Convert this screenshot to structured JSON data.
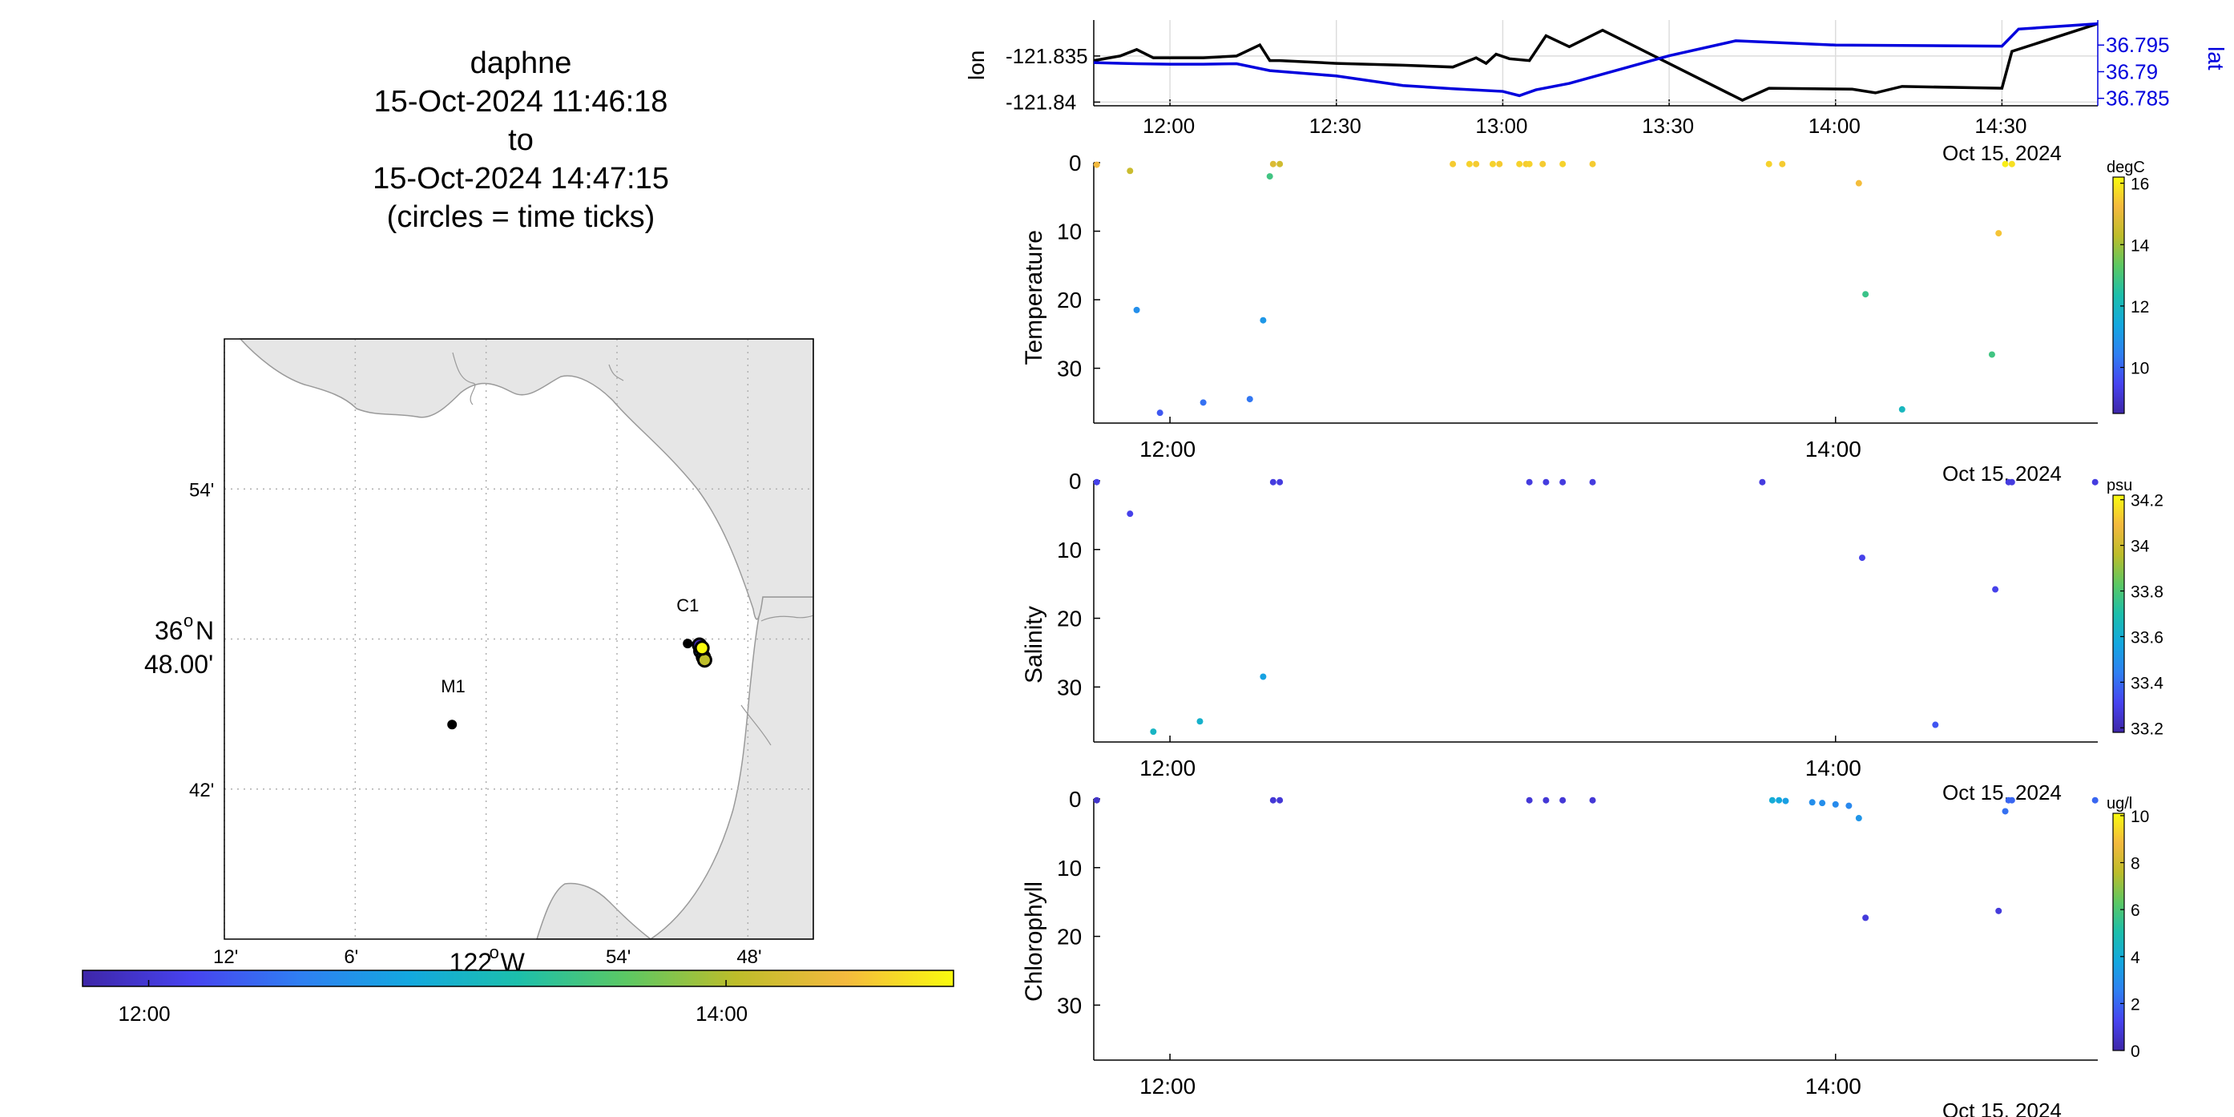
{
  "title": {
    "lines": [
      "daphne",
      "15-Oct-2024 11:46:18",
      "to",
      "15-Oct-2024 14:47:15",
      "(circles = time ticks)"
    ]
  },
  "colors": {
    "background": "#ffffff",
    "land": "#e6e6e6",
    "coast": "#9a9a9a",
    "grid": "#b0b0b0",
    "lon_line": "#000000",
    "lat_line": "#0000dd",
    "colormap": [
      "#3e26a8",
      "#4743f0",
      "#2f7ff2",
      "#13a8df",
      "#1cbfab",
      "#5cc863",
      "#bdbd2a",
      "#f4b93e",
      "#f9fb0e"
    ]
  },
  "chart_data": [
    {
      "name": "map",
      "type": "scatter",
      "x_ticks": [
        -122.2,
        -122.1,
        -122.0,
        -121.9,
        -121.8
      ],
      "x_tick_labels": [
        "12'",
        "6'",
        "122°W",
        "54'",
        "48'"
      ],
      "xlabel_major": "122",
      "xlabel_major_sup": "o",
      "xlabel_major_suffix": "W",
      "y_ticks": [
        36.7,
        36.8,
        36.9
      ],
      "y_tick_labels": [
        "42'",
        "48.00'",
        "54'"
      ],
      "ylabel_major": "36",
      "ylabel_major_sup": "o",
      "ylabel_major_suffix": "N",
      "xlim": [
        -122.2,
        -121.75
      ],
      "ylim": [
        36.6,
        37.0
      ],
      "stations": [
        {
          "label": "M1",
          "lon": -122.026,
          "lat": 36.743
        },
        {
          "label": "C1",
          "lon": -121.846,
          "lat": 36.797
        }
      ],
      "track": [
        [
          -121.837,
          36.796
        ],
        [
          -121.836,
          36.792
        ],
        [
          -121.834,
          36.788
        ],
        [
          -121.833,
          36.786
        ],
        [
          -121.835,
          36.794
        ]
      ],
      "time_colorbar": {
        "ticks": [
          "12:00",
          "14:00"
        ],
        "tick_times": [
          12.0,
          14.0
        ],
        "range": [
          11.771,
          14.788
        ]
      }
    },
    {
      "name": "position",
      "type": "line",
      "x_ticks": [
        "12:00",
        "12:30",
        "13:00",
        "13:30",
        "14:00",
        "14:30"
      ],
      "x_tick_values": [
        12.0,
        12.5,
        13.0,
        13.5,
        14.0,
        14.5
      ],
      "xlim": [
        11.771,
        14.788
      ],
      "date_label": "Oct 15, 2024",
      "ylabel_left": "lon",
      "ylabel_right": "lat",
      "left_ticks": [
        -121.835,
        -121.84
      ],
      "left_tick_labels": [
        "-121.835",
        "-121.84"
      ],
      "left_ylim": [
        -121.8404,
        -121.8311
      ],
      "right_ticks": [
        36.795,
        36.79,
        36.785
      ],
      "right_tick_labels": [
        "36.795",
        "36.79",
        "36.785"
      ],
      "right_ylim": [
        36.7836,
        36.7997
      ],
      "series": [
        {
          "key": "lon",
          "color": "#000000",
          "x": [
            11.771,
            11.85,
            11.9,
            11.95,
            12.0,
            12.1,
            12.2,
            12.27,
            12.3,
            12.33,
            12.5,
            12.7,
            12.85,
            12.92,
            12.95,
            12.98,
            13.02,
            13.08,
            13.13,
            13.2,
            13.3,
            13.72,
            13.8,
            14.05,
            14.12,
            14.2,
            14.5,
            14.53,
            14.788
          ],
          "y": [
            -121.8355,
            -121.835,
            -121.8343,
            -121.8352,
            -121.8352,
            -121.8352,
            -121.835,
            -121.8338,
            -121.8355,
            -121.8355,
            -121.8358,
            -121.836,
            -121.8362,
            -121.8352,
            -121.8358,
            -121.8348,
            -121.8353,
            -121.8355,
            -121.8328,
            -121.834,
            -121.8322,
            -121.8398,
            -121.8385,
            -121.8386,
            -121.839,
            -121.8383,
            -121.8385,
            -121.8345,
            -121.8315
          ]
        },
        {
          "key": "lat",
          "color": "#0000dd",
          "x": [
            11.771,
            11.9,
            12.0,
            12.1,
            12.2,
            12.3,
            12.5,
            12.7,
            12.85,
            13.0,
            13.05,
            13.1,
            13.2,
            13.5,
            13.7,
            14.0,
            14.5,
            14.55,
            14.788
          ],
          "y": [
            36.7917,
            36.7915,
            36.7914,
            36.7914,
            36.7915,
            36.7902,
            36.7892,
            36.7874,
            36.7868,
            36.7863,
            36.7855,
            36.7866,
            36.7878,
            36.793,
            36.7958,
            36.795,
            36.7948,
            36.798,
            36.799
          ]
        }
      ]
    },
    {
      "name": "temperature",
      "type": "scatter",
      "ylabel": "Temperature",
      "units": "degC",
      "ylim": [
        0,
        38
      ],
      "y_ticks": [
        0,
        10,
        20,
        30
      ],
      "x_ticks": [
        "12:00",
        "14:00"
      ],
      "x_tick_values": [
        12.0,
        14.0
      ],
      "xlim": [
        11.771,
        14.788
      ],
      "date_label": "Oct 15, 2024",
      "clim": [
        8.5,
        16.2
      ],
      "cbar_ticks": [
        10,
        12,
        14,
        16
      ],
      "points": [
        {
          "t": 11.78,
          "depth": 0.3,
          "v": 15.2
        },
        {
          "t": 11.88,
          "depth": 1.2,
          "v": 14.5
        },
        {
          "t": 11.9,
          "depth": 21.5,
          "v": 10.8
        },
        {
          "t": 11.97,
          "depth": 36.5,
          "v": 9.8
        },
        {
          "t": 12.1,
          "depth": 35.0,
          "v": 10.2
        },
        {
          "t": 12.24,
          "depth": 34.5,
          "v": 10.3
        },
        {
          "t": 12.28,
          "depth": 23.0,
          "v": 11.0
        },
        {
          "t": 12.3,
          "depth": 2.0,
          "v": 12.9
        },
        {
          "t": 12.31,
          "depth": 0.2,
          "v": 14.8
        },
        {
          "t": 12.33,
          "depth": 0.2,
          "v": 14.6
        },
        {
          "t": 12.85,
          "depth": 0.2,
          "v": 15.5
        },
        {
          "t": 12.9,
          "depth": 0.2,
          "v": 15.6
        },
        {
          "t": 12.92,
          "depth": 0.2,
          "v": 15.5
        },
        {
          "t": 12.97,
          "depth": 0.2,
          "v": 15.6
        },
        {
          "t": 12.99,
          "depth": 0.2,
          "v": 15.5
        },
        {
          "t": 13.05,
          "depth": 0.2,
          "v": 15.6
        },
        {
          "t": 13.07,
          "depth": 0.2,
          "v": 15.5
        },
        {
          "t": 13.08,
          "depth": 0.2,
          "v": 15.6
        },
        {
          "t": 13.12,
          "depth": 0.2,
          "v": 15.5
        },
        {
          "t": 13.18,
          "depth": 0.2,
          "v": 15.6
        },
        {
          "t": 13.27,
          "depth": 0.2,
          "v": 15.5
        },
        {
          "t": 13.8,
          "depth": 0.2,
          "v": 15.6
        },
        {
          "t": 13.84,
          "depth": 0.2,
          "v": 15.5
        },
        {
          "t": 14.07,
          "depth": 3.0,
          "v": 15.3
        },
        {
          "t": 14.09,
          "depth": 19.2,
          "v": 12.8
        },
        {
          "t": 14.2,
          "depth": 36.0,
          "v": 12.0
        },
        {
          "t": 14.47,
          "depth": 28.0,
          "v": 12.9
        },
        {
          "t": 14.49,
          "depth": 10.3,
          "v": 15.4
        },
        {
          "t": 14.51,
          "depth": 0.2,
          "v": 16.0
        },
        {
          "t": 14.53,
          "depth": 0.2,
          "v": 15.8
        }
      ]
    },
    {
      "name": "salinity",
      "type": "scatter",
      "ylabel": "Salinity",
      "units": "psu",
      "ylim": [
        0,
        38
      ],
      "y_ticks": [
        0,
        10,
        20,
        30
      ],
      "x_ticks": [
        "12:00",
        "14:00"
      ],
      "x_tick_values": [
        12.0,
        14.0
      ],
      "xlim": [
        11.771,
        14.788
      ],
      "date_label": "Oct 15, 2024",
      "clim": [
        33.18,
        34.22
      ],
      "cbar_ticks": [
        33.2,
        33.4,
        33.6,
        33.8,
        34,
        34.2
      ],
      "cbar_tick_labels": [
        "33.2",
        "33.4",
        "33.6",
        "33.8",
        "34",
        "34.2"
      ],
      "points": [
        {
          "t": 11.78,
          "depth": 0.2,
          "v": 33.3
        },
        {
          "t": 11.88,
          "depth": 4.8,
          "v": 33.3
        },
        {
          "t": 11.95,
          "depth": 36.5,
          "v": 33.64
        },
        {
          "t": 12.09,
          "depth": 35.0,
          "v": 33.62
        },
        {
          "t": 12.28,
          "depth": 28.5,
          "v": 33.55
        },
        {
          "t": 12.31,
          "depth": 0.2,
          "v": 33.28
        },
        {
          "t": 12.33,
          "depth": 0.2,
          "v": 33.28
        },
        {
          "t": 13.08,
          "depth": 0.2,
          "v": 33.28
        },
        {
          "t": 13.13,
          "depth": 0.2,
          "v": 33.28
        },
        {
          "t": 13.18,
          "depth": 0.2,
          "v": 33.28
        },
        {
          "t": 13.27,
          "depth": 0.2,
          "v": 33.28
        },
        {
          "t": 13.78,
          "depth": 0.2,
          "v": 33.28
        },
        {
          "t": 14.08,
          "depth": 11.2,
          "v": 33.3
        },
        {
          "t": 14.3,
          "depth": 35.5,
          "v": 33.35
        },
        {
          "t": 14.48,
          "depth": 15.8,
          "v": 33.3
        },
        {
          "t": 14.52,
          "depth": 0.2,
          "v": 33.28
        },
        {
          "t": 14.53,
          "depth": 0.2,
          "v": 33.28
        },
        {
          "t": 14.78,
          "depth": 0.2,
          "v": 33.28
        }
      ]
    },
    {
      "name": "chlorophyll",
      "type": "scatter",
      "ylabel": "Chlorophyll",
      "units": "ug/l",
      "ylim": [
        0,
        38
      ],
      "y_ticks": [
        0,
        10,
        20,
        30
      ],
      "x_ticks": [
        "12:00",
        "14:00"
      ],
      "x_tick_values": [
        12.0,
        14.0
      ],
      "xlim": [
        11.771,
        14.788
      ],
      "date_label": "Oct 15, 2024",
      "clim": [
        0,
        10.1
      ],
      "cbar_ticks": [
        0,
        2,
        4,
        6,
        8,
        10
      ],
      "points": [
        {
          "t": 11.78,
          "depth": 0.2,
          "v": 0.6
        },
        {
          "t": 12.31,
          "depth": 0.2,
          "v": 0.8
        },
        {
          "t": 12.33,
          "depth": 0.2,
          "v": 0.8
        },
        {
          "t": 13.08,
          "depth": 0.2,
          "v": 0.8
        },
        {
          "t": 13.13,
          "depth": 0.2,
          "v": 0.8
        },
        {
          "t": 13.18,
          "depth": 0.2,
          "v": 0.8
        },
        {
          "t": 13.27,
          "depth": 0.2,
          "v": 0.8
        },
        {
          "t": 13.81,
          "depth": 0.2,
          "v": 4.0
        },
        {
          "t": 13.83,
          "depth": 0.2,
          "v": 3.8
        },
        {
          "t": 13.85,
          "depth": 0.3,
          "v": 3.5
        },
        {
          "t": 13.93,
          "depth": 0.5,
          "v": 3.0
        },
        {
          "t": 13.96,
          "depth": 0.6,
          "v": 3.0
        },
        {
          "t": 14.0,
          "depth": 0.8,
          "v": 2.9
        },
        {
          "t": 14.04,
          "depth": 1.0,
          "v": 2.8
        },
        {
          "t": 14.07,
          "depth": 2.8,
          "v": 3.2
        },
        {
          "t": 14.09,
          "depth": 17.3,
          "v": 0.9
        },
        {
          "t": 14.49,
          "depth": 16.3,
          "v": 0.9
        },
        {
          "t": 14.51,
          "depth": 1.8,
          "v": 2.2
        },
        {
          "t": 14.52,
          "depth": 0.2,
          "v": 2.0
        },
        {
          "t": 14.53,
          "depth": 0.2,
          "v": 2.0
        },
        {
          "t": 14.78,
          "depth": 0.2,
          "v": 2.0
        }
      ]
    }
  ]
}
